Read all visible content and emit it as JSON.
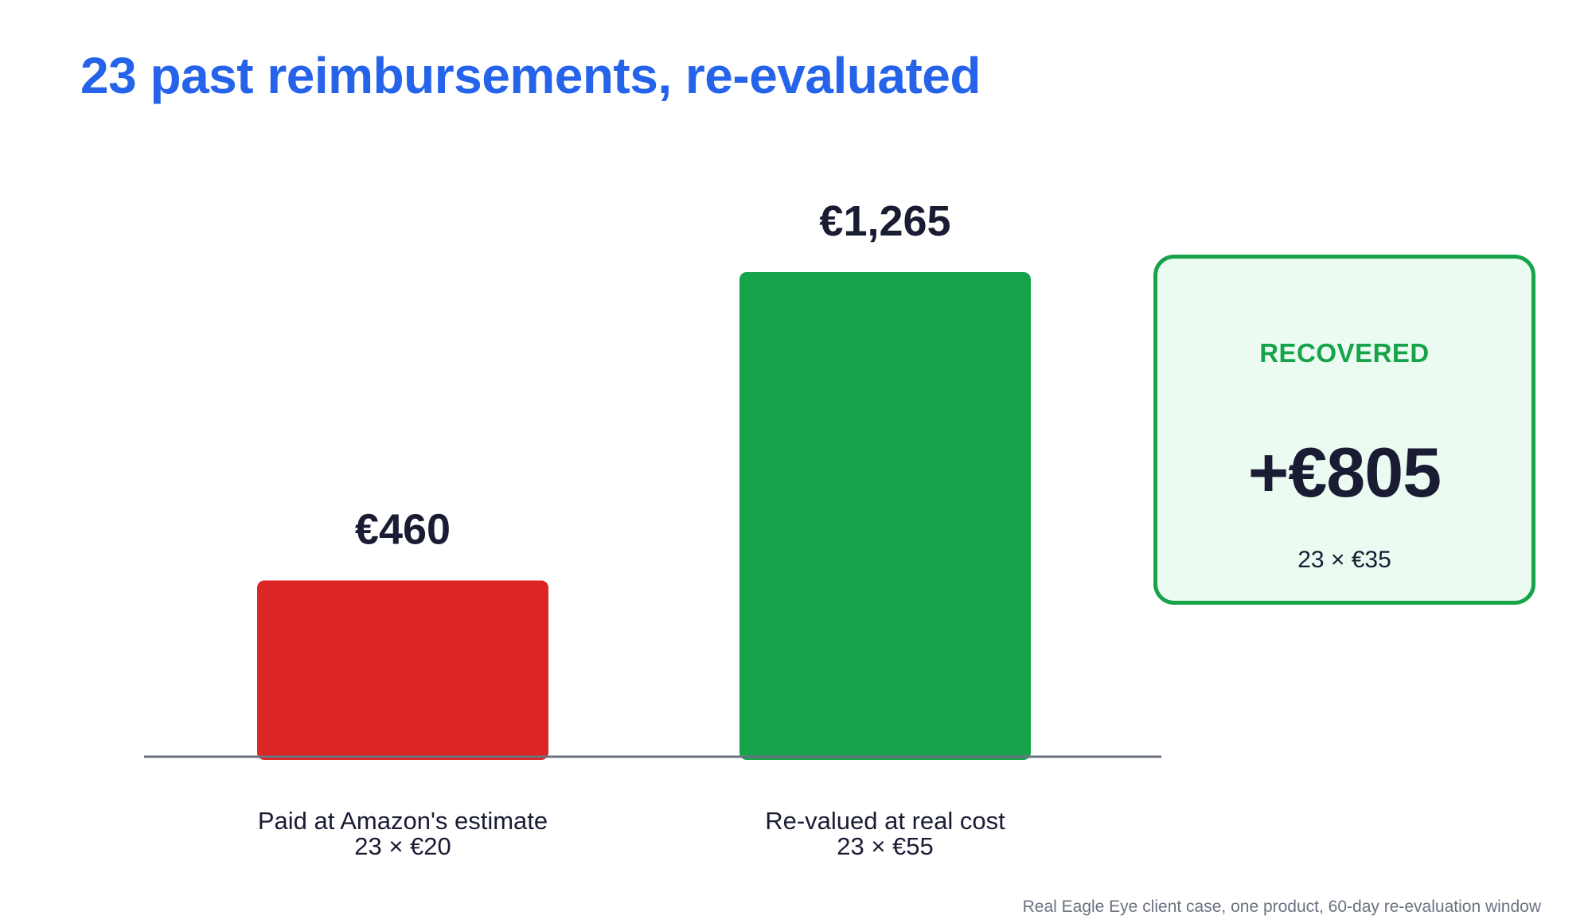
{
  "title": "23 past reimbursements, re-evaluated",
  "chart_data": {
    "type": "bar",
    "categories": [
      "Paid at Amazon's estimate",
      "Re-valued at real cost"
    ],
    "category_formulas": [
      "23 × €20",
      "23 × €55"
    ],
    "values": [
      460,
      1265
    ],
    "value_labels": [
      "€460",
      "€1,265"
    ],
    "colors": [
      "#dc2626",
      "#16a34a"
    ],
    "ylim": [
      0,
      1265
    ],
    "grid": false,
    "axis_color": "#6b7280"
  },
  "callout": {
    "label": "RECOVERED",
    "value": "+€805",
    "formula": "23 × €35"
  },
  "footnote": "Real Eagle Eye client case, one product, 60-day re-evaluation window",
  "colors": {
    "title": "#2563eb",
    "text": "#1a1c33",
    "card_background": "#ecfbf1",
    "card_border": "#16a34a"
  }
}
